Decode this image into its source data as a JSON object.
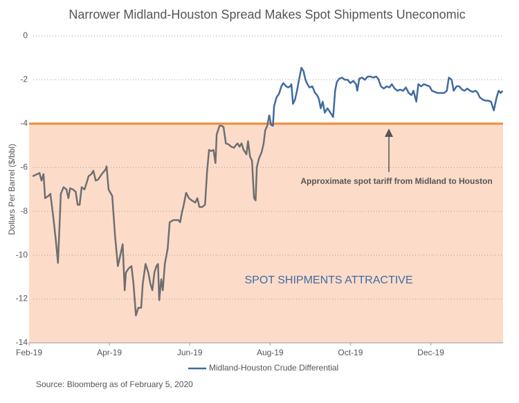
{
  "chart_data": {
    "type": "line",
    "title": "Narrower Midland-Houston Spread Makes Spot Shipments Uneconomic",
    "ylabel": "Dollars Per Barrel ($/bbl)",
    "source": "Source: Bloomberg as of February 5, 2020",
    "xlim": [
      0,
      11.8
    ],
    "xticks": [
      {
        "value": 0,
        "label": "Feb-19"
      },
      {
        "value": 2,
        "label": "Apr-19"
      },
      {
        "value": 4,
        "label": "Jun-19"
      },
      {
        "value": 6,
        "label": "Aug-19"
      },
      {
        "value": 8,
        "label": "Oct-19"
      },
      {
        "value": 10,
        "label": "Dec-19"
      }
    ],
    "ylim": [
      -14,
      0
    ],
    "yticks": [
      0,
      -2,
      -4,
      -6,
      -8,
      -10,
      -12,
      -14
    ],
    "grid": true,
    "threshold": -4,
    "threshold_color": "#f08a3c",
    "region_color": "#fcdcc8",
    "annotations": [
      {
        "text": "Approximate spot tariff from Midland to Houston"
      },
      {
        "text": "SPOT SHIPMENTS ATTRACTIVE"
      }
    ],
    "series": [
      {
        "color": "#6d6e72",
        "x": [
          0.09,
          0.26,
          0.31,
          0.36,
          0.4,
          0.48,
          0.53,
          0.6,
          0.66,
          0.72,
          0.79,
          0.86,
          0.93,
          0.98,
          1.02,
          1.09,
          1.16,
          1.21,
          1.26,
          1.31,
          1.38,
          1.45,
          1.48,
          1.55,
          1.6,
          1.66,
          1.72,
          1.81,
          1.9,
          1.93,
          1.98,
          2.07,
          2.14,
          2.21,
          2.26,
          2.33,
          2.38,
          2.41,
          2.48,
          2.55,
          2.6,
          2.66,
          2.72,
          2.79,
          2.83,
          2.9,
          2.97,
          3.02,
          3.07,
          3.12,
          3.17,
          3.21,
          3.24,
          3.29,
          3.33,
          3.38,
          3.45,
          3.5,
          3.59,
          3.66,
          3.72,
          3.76,
          3.81,
          3.84,
          3.91,
          3.98,
          4.05,
          4.14,
          4.19,
          4.24,
          4.31,
          4.38,
          4.43,
          4.48,
          4.53,
          4.59,
          4.64,
          4.67,
          4.74,
          4.79,
          4.84,
          4.9,
          4.97,
          5.03,
          5.1,
          5.14,
          5.19,
          5.24,
          5.29,
          5.34,
          5.38,
          5.41,
          5.45,
          5.5,
          5.55,
          5.6,
          5.64,
          5.67,
          5.72,
          5.79,
          5.84,
          5.88,
          5.93,
          5.98
        ],
        "values": [
          -6.4,
          -6.25,
          -6.6,
          -6.3,
          -7.4,
          -7.3,
          -7.2,
          -8.2,
          -9.2,
          -10.35,
          -7.2,
          -6.9,
          -7.0,
          -7.4,
          -6.95,
          -7.0,
          -7.1,
          -7.7,
          -7.7,
          -6.9,
          -7.0,
          -6.6,
          -6.4,
          -6.3,
          -6.15,
          -6.6,
          -6.55,
          -6.3,
          -6.1,
          -5.95,
          -7.0,
          -7.3,
          -9.1,
          -10.5,
          -10.1,
          -9.5,
          -11.6,
          -10.8,
          -10.6,
          -10.5,
          -11.3,
          -12.75,
          -12.4,
          -12.4,
          -11.3,
          -10.4,
          -10.8,
          -11.3,
          -11.6,
          -10.8,
          -10.5,
          -10.4,
          -12.05,
          -11.1,
          -11.6,
          -10.4,
          -9.7,
          -8.5,
          -8.4,
          -8.4,
          -8.4,
          -8.5,
          -8.0,
          -7.8,
          -7.15,
          -7.4,
          -7.5,
          -7.6,
          -7.4,
          -7.8,
          -7.8,
          -7.7,
          -6.2,
          -5.2,
          -5.25,
          -5.2,
          -5.8,
          -4.5,
          -4.1,
          -4.1,
          -4.15,
          -4.9,
          -4.95,
          -5.05,
          -5.1,
          -5.0,
          -4.9,
          -5.05,
          -4.9,
          -5.2,
          -5.3,
          -5.4,
          -4.8,
          -5.5,
          -5.7,
          -7.4,
          -7.5,
          -6.0,
          -5.6,
          -5.3,
          -4.9,
          -4.3,
          -4.1,
          -3.6
        ]
      },
      {
        "name": "Midland-Houston Crude Differential",
        "color": "#3f6aa1",
        "x": [
          5.98,
          6.02,
          6.07,
          6.1,
          6.16,
          6.22,
          6.28,
          6.33,
          6.4,
          6.45,
          6.5,
          6.53,
          6.57,
          6.62,
          6.67,
          6.72,
          6.78,
          6.83,
          6.88,
          6.93,
          6.98,
          7.05,
          7.12,
          7.17,
          7.22,
          7.26,
          7.31,
          7.36,
          7.43,
          7.5,
          7.57,
          7.62,
          7.66,
          7.72,
          7.79,
          7.86,
          7.93,
          8.0,
          8.07,
          8.14,
          8.17,
          8.22,
          8.29,
          8.36,
          8.43,
          8.5,
          8.57,
          8.64,
          8.69,
          8.76,
          8.83,
          8.9,
          8.97,
          9.03,
          9.1,
          9.17,
          9.24,
          9.31,
          9.38,
          9.45,
          9.52,
          9.57,
          9.64,
          9.69,
          9.76,
          9.83,
          9.9,
          9.97,
          10.03,
          10.1,
          10.17,
          10.24,
          10.33,
          10.4,
          10.45,
          10.52,
          10.57,
          10.64,
          10.71,
          10.78,
          10.84,
          10.91,
          10.98,
          11.05,
          11.12,
          11.17,
          11.22,
          11.29,
          11.36,
          11.43,
          11.5,
          11.57,
          11.64,
          11.69,
          11.74,
          11.79
        ],
        "values": [
          -3.6,
          -4.05,
          -4.1,
          -3.2,
          -2.8,
          -2.65,
          -2.3,
          -2.15,
          -2.3,
          -2.35,
          -2.3,
          -2.2,
          -3.1,
          -2.9,
          -2.5,
          -2.0,
          -1.45,
          -1.6,
          -2.0,
          -2.2,
          -2.35,
          -2.3,
          -2.6,
          -2.7,
          -2.9,
          -3.3,
          -3.0,
          -3.5,
          -3.3,
          -3.5,
          -3.7,
          -2.5,
          -2.1,
          -1.95,
          -1.9,
          -2.0,
          -2.0,
          -2.15,
          -2.05,
          -2.2,
          -2.5,
          -1.95,
          -1.9,
          -2.0,
          -1.85,
          -1.85,
          -1.9,
          -1.85,
          -1.95,
          -2.3,
          -2.4,
          -2.3,
          -2.35,
          -2.2,
          -2.4,
          -2.5,
          -2.45,
          -2.5,
          -2.35,
          -2.6,
          -2.7,
          -2.5,
          -3.0,
          -2.2,
          -2.3,
          -2.2,
          -2.25,
          -2.3,
          -2.5,
          -2.55,
          -2.6,
          -2.6,
          -2.6,
          -2.5,
          -1.9,
          -2.0,
          -2.5,
          -2.3,
          -2.3,
          -2.45,
          -2.5,
          -2.4,
          -2.5,
          -2.55,
          -2.5,
          -2.6,
          -2.8,
          -2.9,
          -2.95,
          -2.95,
          -3.0,
          -3.4,
          -2.8,
          -2.5,
          -2.6,
          -2.5
        ]
      }
    ]
  }
}
